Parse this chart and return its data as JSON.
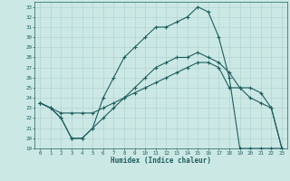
{
  "xlabel": "Humidex (Indice chaleur)",
  "xlim": [
    -0.5,
    23.5
  ],
  "ylim": [
    19,
    33.5
  ],
  "yticks": [
    19,
    20,
    21,
    22,
    23,
    24,
    25,
    26,
    27,
    28,
    29,
    30,
    31,
    32,
    33
  ],
  "xticks": [
    0,
    1,
    2,
    3,
    4,
    5,
    6,
    7,
    8,
    9,
    10,
    11,
    12,
    13,
    14,
    15,
    16,
    17,
    18,
    19,
    20,
    21,
    22,
    23
  ],
  "bg_color": "#cce8e5",
  "line_color": "#1e5f5f",
  "grid_color": "#aacfcc",
  "line1_x": [
    0,
    1,
    2,
    3,
    4,
    5,
    6,
    7,
    8,
    9,
    10,
    11,
    12,
    13,
    14,
    15,
    16,
    17,
    18,
    19,
    20,
    21,
    22,
    23
  ],
  "line1_y": [
    23.5,
    23,
    22,
    20,
    20,
    21,
    22,
    23,
    24,
    25,
    26,
    27,
    27.5,
    28,
    28,
    28.5,
    28,
    27.5,
    26.5,
    25,
    24,
    23.5,
    23,
    19
  ],
  "line2_x": [
    0,
    1,
    2,
    3,
    4,
    5,
    6,
    7,
    8,
    9,
    10,
    11,
    12,
    13,
    14,
    15,
    16,
    17,
    18,
    19,
    20,
    21,
    22,
    23
  ],
  "line2_y": [
    23.5,
    23,
    22.5,
    22.5,
    22.5,
    22.5,
    23,
    23.5,
    24,
    24.5,
    25,
    25.5,
    26,
    26.5,
    27,
    27.5,
    27.5,
    27,
    25,
    25,
    25,
    24.5,
    23,
    19
  ],
  "line3_x": [
    0,
    1,
    2,
    3,
    4,
    5,
    6,
    7,
    8,
    9,
    10,
    11,
    12,
    13,
    14,
    15,
    16,
    17,
    18,
    19,
    20,
    21,
    22,
    23
  ],
  "line3_y": [
    23.5,
    23,
    22,
    20,
    20,
    21,
    24,
    26,
    28,
    29,
    30,
    31,
    31,
    31.5,
    32,
    33,
    32.5,
    30,
    26,
    19,
    19,
    19,
    19,
    19
  ]
}
